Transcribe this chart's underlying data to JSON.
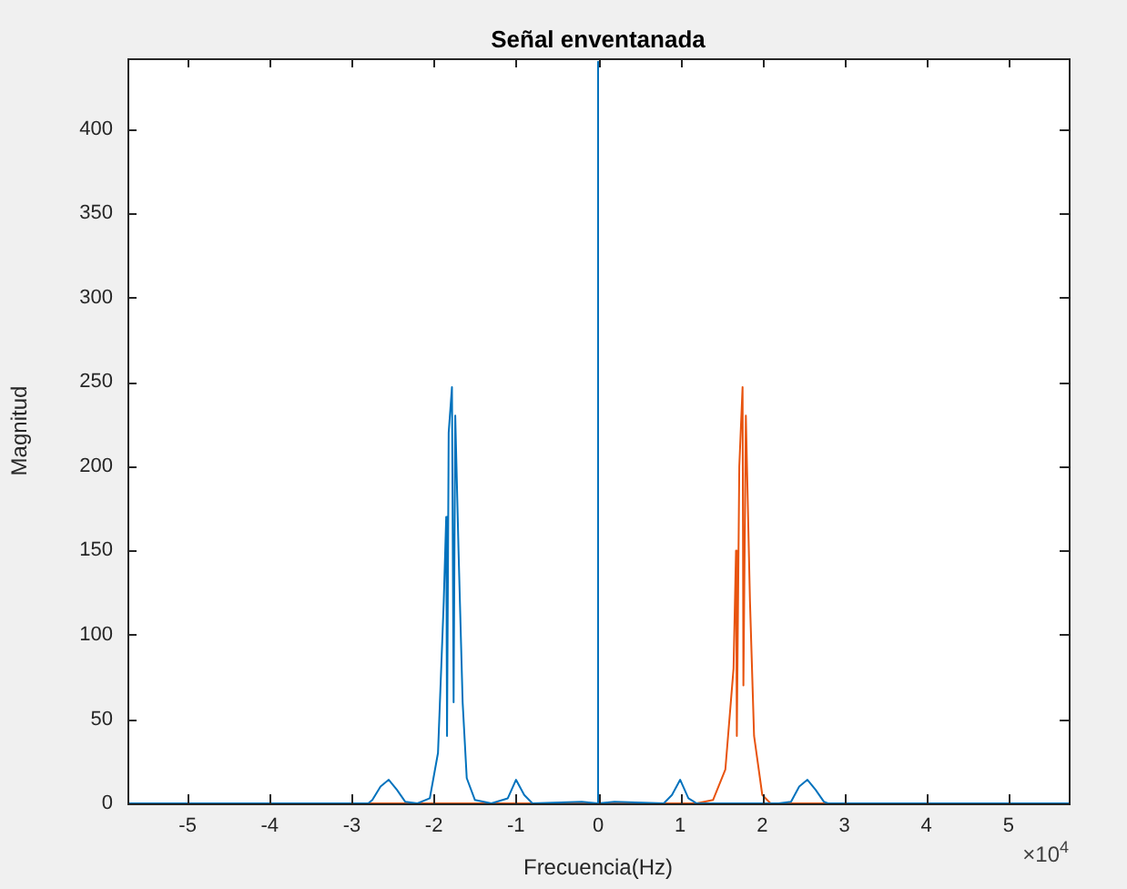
{
  "chart_data": {
    "type": "line",
    "title": "Señal enventanada",
    "xlabel": "Frecuencia(Hz)",
    "ylabel": "Magnitud",
    "xlim": [
      -5.733,
      5.733
    ],
    "ylim": [
      0,
      442
    ],
    "xticks": [
      -5,
      -4,
      -3,
      -2,
      -1,
      0,
      1,
      2,
      3,
      4,
      5
    ],
    "yticks": [
      0,
      50,
      100,
      150,
      200,
      250,
      300,
      350,
      400
    ],
    "annotations": [
      "×10$^{4}$"
    ],
    "grid": false,
    "legend": false,
    "series": [
      {
        "color": "#0072bd",
        "x": [
          -5.733,
          -2.8,
          -2.75,
          -2.65,
          -2.55,
          -2.45,
          -2.35,
          -2.2,
          -2.05,
          -1.95,
          -1.88,
          -1.85,
          -1.84,
          -1.82,
          -1.78,
          -1.76,
          -1.74,
          -1.7,
          -1.65,
          -1.6,
          -1.5,
          -1.3,
          -1.1,
          -1.0,
          -0.9,
          -0.8,
          -0.2,
          0,
          0,
          0,
          0.2,
          0.8,
          0.9,
          1.0,
          1.1,
          1.2,
          2.2,
          2.35,
          2.45,
          2.55,
          2.65,
          2.75,
          2.8,
          5.733
        ],
        "values": [
          0,
          0,
          2,
          10,
          14,
          8,
          1,
          0,
          3,
          30,
          120,
          170,
          40,
          220,
          247,
          60,
          230,
          150,
          60,
          15,
          2,
          0,
          3,
          14,
          5,
          0,
          1,
          0,
          440,
          0,
          1,
          0,
          5,
          14,
          3,
          0,
          0,
          1,
          10,
          14,
          8,
          1,
          0,
          0
        ]
      },
      {
        "color": "#e8530e",
        "x": [
          -5.733,
          1.2,
          1.4,
          1.55,
          1.65,
          1.68,
          1.69,
          1.72,
          1.76,
          1.77,
          1.8,
          1.85,
          1.9,
          2.0,
          2.1,
          5.733
        ],
        "values": [
          0,
          0,
          2,
          20,
          80,
          150,
          40,
          200,
          247,
          70,
          230,
          120,
          40,
          5,
          0,
          0
        ]
      }
    ]
  }
}
